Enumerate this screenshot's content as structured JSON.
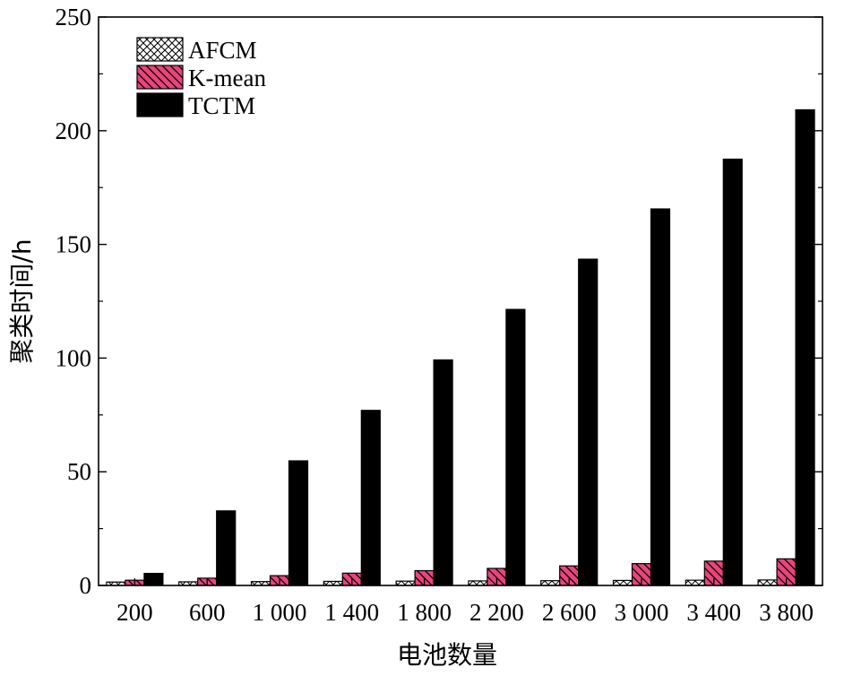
{
  "chart_data": {
    "type": "bar",
    "xlabel": "电池数量",
    "ylabel": "聚类时间/h",
    "categories": [
      "200",
      "600",
      "1 000",
      "1 400",
      "1 800",
      "2 200",
      "2 600",
      "3 000",
      "3 400",
      "3 800"
    ],
    "series": [
      {
        "name": "AFCM",
        "values": [
          1.5,
          1.6,
          1.7,
          1.8,
          1.9,
          2.0,
          2.1,
          2.2,
          2.3,
          2.4
        ],
        "color": "#ffffff",
        "pattern": "crosshatch"
      },
      {
        "name": "K-mean",
        "values": [
          2.3,
          3.2,
          4.3,
          5.4,
          6.5,
          7.5,
          8.6,
          9.6,
          10.7,
          11.7
        ],
        "color": "#e8457a",
        "pattern": "diagonal"
      },
      {
        "name": "TCTM",
        "values": [
          5.3,
          32.8,
          54.8,
          77.0,
          99.2,
          121.4,
          143.5,
          165.6,
          187.5,
          209.2
        ],
        "color": "#000000",
        "pattern": "solid"
      }
    ],
    "ylim": [
      0,
      250
    ],
    "yticks": [
      0,
      50,
      100,
      150,
      200,
      250
    ],
    "grid": false,
    "legend_position": "top-left"
  }
}
